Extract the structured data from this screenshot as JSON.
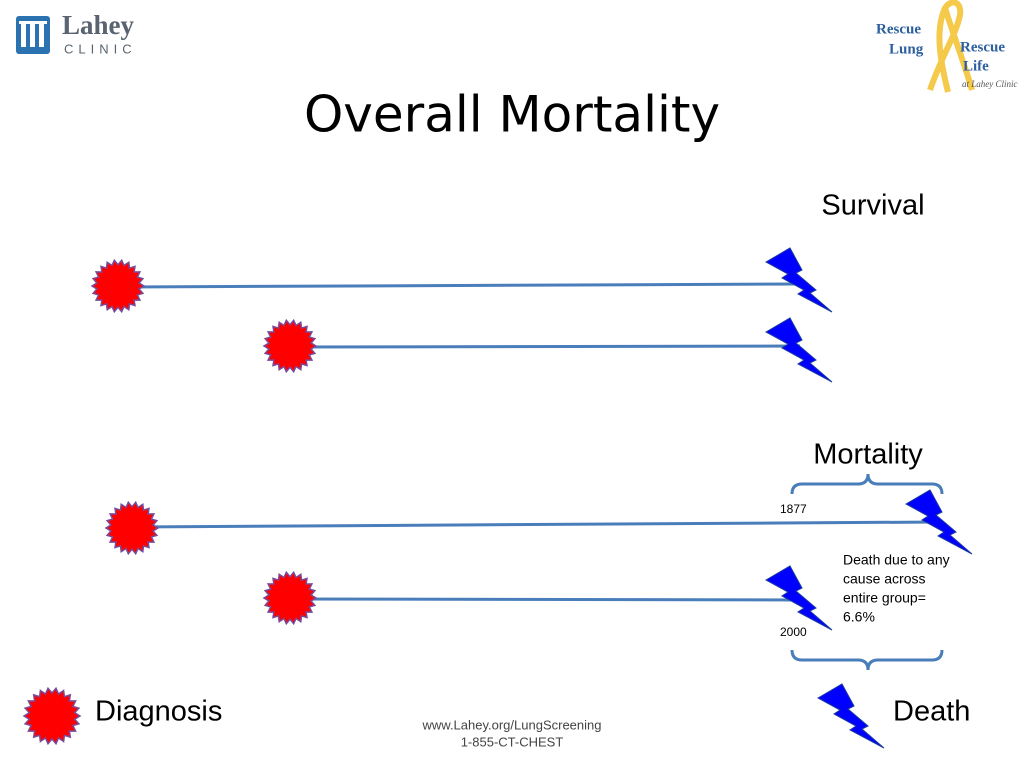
{
  "header": {
    "logo_left": {
      "name": "Lahey",
      "subname": "CLINIC"
    },
    "logo_right": {
      "line1a": "Rescue",
      "line1b": "Rescue",
      "line2a": "Lung",
      "line2b": "Life",
      "tagline": "at Lahey Clinic"
    },
    "title": "Overall Mortality"
  },
  "diagram": {
    "survival_label": "Survival",
    "mortality_label": "Mortality",
    "top_count": "1877",
    "bottom_count": "2000",
    "note": [
      "Death due to any",
      "cause across",
      "entire group=",
      "6.6%"
    ]
  },
  "legend": {
    "diagnosis": "Diagnosis",
    "death": "Death"
  },
  "footer": {
    "url": "www.Lahey.org/LungScreening",
    "phone": "1-855-CT-CHEST"
  }
}
